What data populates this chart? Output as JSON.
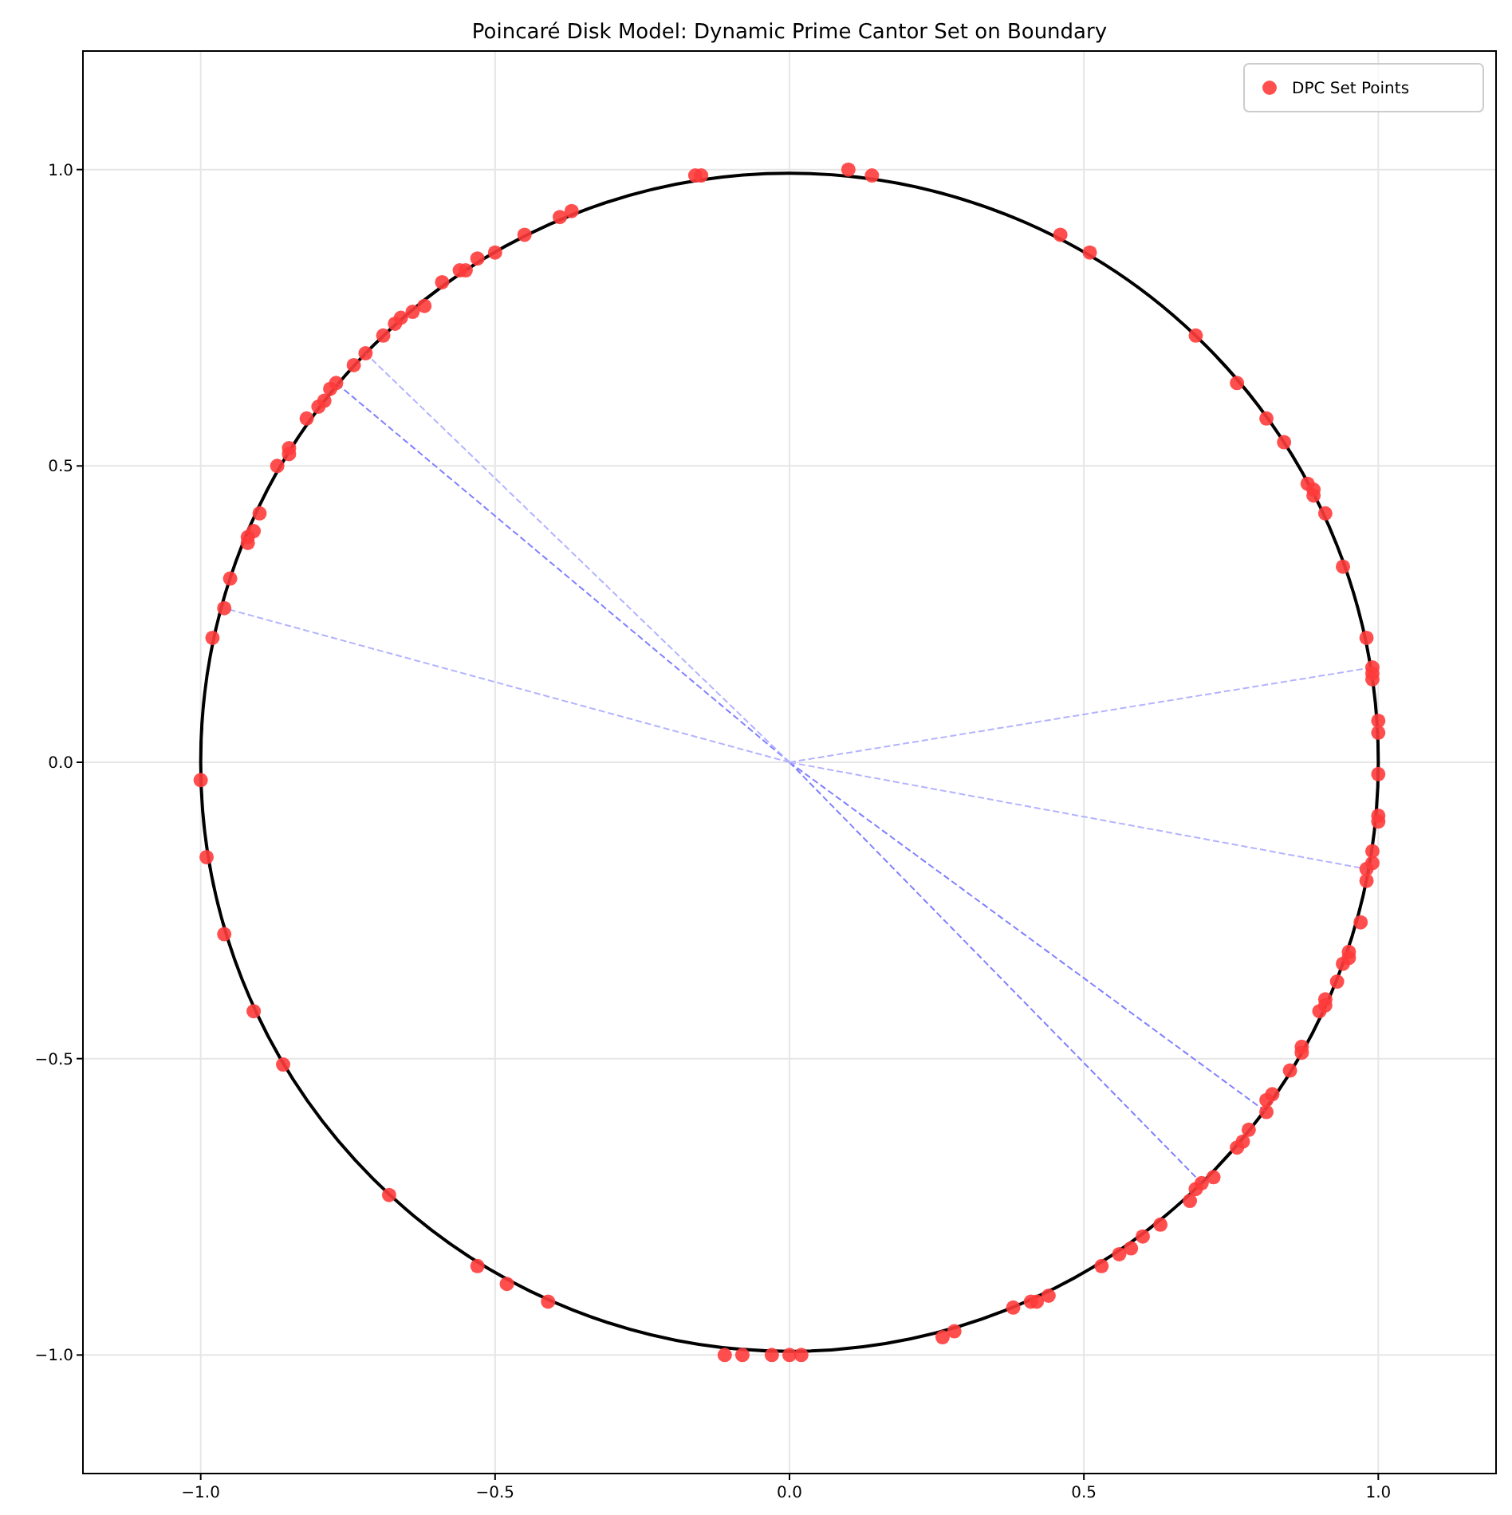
{
  "chart_data": {
    "type": "scatter",
    "title": "Poincaré Disk Model: Dynamic Prime Cantor Set on Boundary",
    "xlim": [
      -1.2,
      1.2
    ],
    "ylim": [
      -1.2,
      1.2
    ],
    "xticks": [
      {
        "value": -1,
        "label": "−1.0"
      },
      {
        "value": -0.5,
        "label": "−0.5"
      },
      {
        "value": 0,
        "label": "0.0"
      },
      {
        "value": 0.5,
        "label": "0.5"
      },
      {
        "value": 1,
        "label": "1.0"
      }
    ],
    "yticks": [
      {
        "value": -1,
        "label": "−1.0"
      },
      {
        "value": -0.5,
        "label": "−0.5"
      },
      {
        "value": 0,
        "label": "0.0"
      },
      {
        "value": 0.5,
        "label": "0.5"
      },
      {
        "value": 1,
        "label": "1.0"
      }
    ],
    "grid": true,
    "legend": "top right",
    "series": [
      {
        "type": "line",
        "color": "#8080ff",
        "line_style": "dashed",
        "x": [
          0,
          -0.77,
          null,
          0,
          0.81,
          null,
          0,
          0.7
        ],
        "values": [
          0,
          0.64,
          null,
          0,
          -0.59,
          null,
          0,
          -0.71
        ]
      },
      {
        "type": "line",
        "color": "#b3b3ff",
        "line_style": "dashed",
        "x": [
          0,
          -0.72,
          null,
          0,
          -0.96,
          null,
          0,
          0.99,
          null,
          0,
          0.98
        ],
        "values": [
          0,
          0.69,
          null,
          0,
          0.26,
          null,
          0,
          0.16,
          null,
          0,
          -0.18
        ]
      },
      {
        "name": "DPC Set Points",
        "color": "#ff3b3b",
        "marker": "circle",
        "x": [
          -0.16,
          -0.15,
          -0.39,
          -0.37,
          -0.45,
          -0.5,
          -0.53,
          -0.55,
          -0.56,
          -0.59,
          -0.62,
          -0.64,
          -0.66,
          -0.67,
          -0.69,
          -0.72,
          -0.74,
          -0.77,
          -0.78,
          -0.79,
          -0.8,
          -0.82,
          -0.85,
          -0.85,
          -0.87,
          -0.9,
          -0.91,
          -0.92,
          -0.92,
          -0.95,
          -0.96,
          -0.98,
          -1.0,
          0.1,
          0.14,
          0.46,
          0.51,
          0.69,
          0.76,
          0.81,
          0.84,
          0.88,
          0.89,
          0.89,
          0.91,
          0.94,
          0.98,
          0.99,
          0.99,
          0.99,
          1.0,
          1.0,
          1.0,
          -0.99,
          -0.96,
          -0.91,
          -0.86,
          -0.68,
          -0.53,
          -0.48,
          -0.41,
          -0.11,
          -0.08,
          -0.03,
          0.0,
          0.02,
          1.0,
          1.0,
          0.99,
          0.99,
          0.98,
          0.98,
          0.97,
          0.95,
          0.95,
          0.94,
          0.93,
          0.91,
          0.91,
          0.9,
          0.87,
          0.87,
          0.85,
          0.82,
          0.81,
          0.81,
          0.78,
          0.77,
          0.76,
          0.72,
          0.7,
          0.69,
          0.68,
          0.63,
          0.6,
          0.58,
          0.56,
          0.53,
          0.44,
          0.42,
          0.41,
          0.38,
          0.28,
          0.26
        ],
        "values": [
          0.99,
          0.99,
          0.92,
          0.93,
          0.89,
          0.86,
          0.85,
          0.83,
          0.83,
          0.81,
          0.77,
          0.76,
          0.75,
          0.74,
          0.72,
          0.69,
          0.67,
          0.64,
          0.63,
          0.61,
          0.6,
          0.58,
          0.53,
          0.52,
          0.5,
          0.42,
          0.39,
          0.38,
          0.37,
          0.31,
          0.26,
          0.21,
          -0.03,
          1.0,
          0.99,
          0.89,
          0.86,
          0.72,
          0.64,
          0.58,
          0.54,
          0.47,
          0.46,
          0.45,
          0.42,
          0.33,
          0.21,
          0.16,
          0.15,
          0.14,
          0.07,
          0.05,
          -0.02,
          -0.16,
          -0.29,
          -0.42,
          -0.51,
          -0.73,
          -0.85,
          -0.88,
          -0.91,
          -1.0,
          -1.0,
          -1.0,
          -1.0,
          -1.0,
          -0.09,
          -0.1,
          -0.15,
          -0.17,
          -0.18,
          -0.2,
          -0.27,
          -0.32,
          -0.33,
          -0.34,
          -0.37,
          -0.4,
          -0.41,
          -0.42,
          -0.48,
          -0.49,
          -0.52,
          -0.56,
          -0.57,
          -0.59,
          -0.62,
          -0.64,
          -0.65,
          -0.7,
          -0.71,
          -0.72,
          -0.74,
          -0.78,
          -0.8,
          -0.82,
          -0.83,
          -0.85,
          -0.9,
          -0.91,
          -0.91,
          -0.92,
          -0.96,
          -0.97
        ]
      }
    ]
  }
}
